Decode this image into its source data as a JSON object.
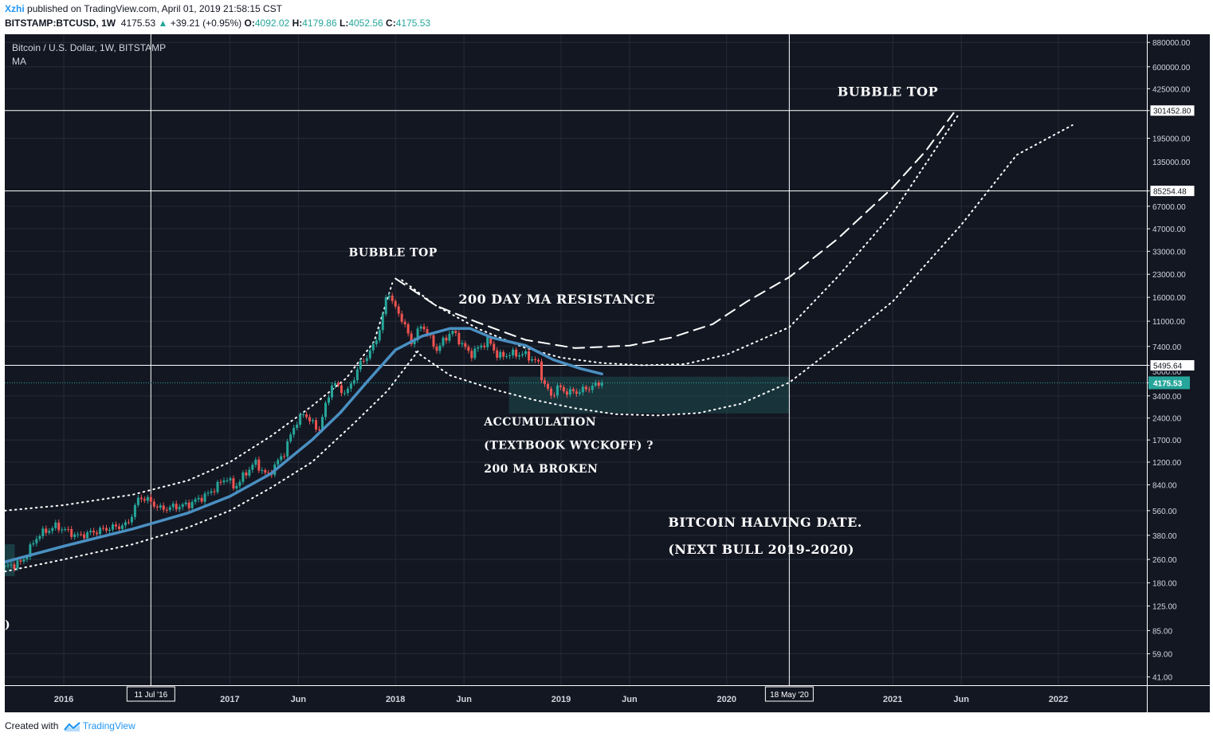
{
  "header": {
    "user": "Xzhi",
    "published": "published on TradingView.com, April 01, 2019 21:58:15 CST",
    "symbol": "BITSTAMP:BTCUSD, 1W",
    "last": "4175.53",
    "change_arrow": "▲",
    "change": "+39.21 (+0.95%)",
    "o_label": "O:",
    "o": "4092.02",
    "h_label": "H:",
    "h": "4179.86",
    "l_label": "L:",
    "l": "4052.56",
    "c_label": "C:",
    "c": "4175.53"
  },
  "footer": {
    "created_with": "Created with",
    "brand": "TradingView",
    "logo_icon": "tradingview-logo-icon"
  },
  "colors": {
    "background": "#131722",
    "grid": "#262b38",
    "up": "#26a69a",
    "down": "#ef5350",
    "ma": "#4a90c2",
    "last_price": "#26a69a",
    "accumulation_box": "#1d4b4f",
    "text": "#ffffff",
    "axis_text": "#d1d4dc"
  },
  "chart_data": {
    "type": "candlestick",
    "scale": "log",
    "legend_title": "Bitcoin / U.S. Dollar, 1W, BITSTAMP",
    "indicator": "MA",
    "price_axis_ticks": [
      880000,
      600000,
      425000,
      301452.8,
      195000,
      85254.48,
      67000,
      47000,
      33000,
      23000,
      16000,
      11000,
      7400,
      5495.64,
      4175.53,
      3400,
      2400,
      1700,
      1200,
      840,
      560,
      380,
      260,
      180,
      125,
      85,
      59,
      41
    ],
    "price_axis_labels": [
      "880000.00",
      "600000.00",
      "425000.00",
      "301452.80",
      "195000.00",
      "85254.48",
      "67000.00",
      "47000.00",
      "33000.00",
      "23000.00",
      "16000.00",
      "11000.00",
      "7400.00",
      "5495.64",
      "4175.53",
      "3400.00",
      "2400.00",
      "1700.00",
      "1200.00",
      "840.00",
      "560.00",
      "380.00",
      "260.00",
      "180.00",
      "125.00",
      "85.00",
      "59.00",
      "41.00"
    ],
    "partially_hidden_axis_labels": [
      "290000.00",
      "135000.00",
      "5000.00"
    ],
    "time_axis": [
      {
        "date": "2016-01-01",
        "label": "2016"
      },
      {
        "date": "2016-07-11",
        "label": "11 Jul '16",
        "boxed": true
      },
      {
        "date": "2017-01-01",
        "label": "2017"
      },
      {
        "date": "2017-06-01",
        "label": "Jun"
      },
      {
        "date": "2018-01-01",
        "label": "2018"
      },
      {
        "date": "2018-06-01",
        "label": "Jun"
      },
      {
        "date": "2019-01-01",
        "label": "2019"
      },
      {
        "date": "2019-06-01",
        "label": "Jun"
      },
      {
        "date": "2020-01-01",
        "label": "2020"
      },
      {
        "date": "2020-05-18",
        "label": "18 May '20",
        "boxed": true
      },
      {
        "date": "2021-01-01",
        "label": "2021"
      },
      {
        "date": "2021-06-01",
        "label": "Jun"
      },
      {
        "date": "2022-01-01",
        "label": "2022"
      }
    ],
    "date_range": [
      "2015-08-24",
      "2022-07-15"
    ],
    "price_range": [
      36,
      1000000
    ],
    "weekly_close_path": [
      {
        "date": "2015-08-24",
        "close": 230
      },
      {
        "date": "2015-10-01",
        "close": 250
      },
      {
        "date": "2015-11-05",
        "close": 380
      },
      {
        "date": "2015-12-15",
        "close": 440
      },
      {
        "date": "2016-02-01",
        "close": 375
      },
      {
        "date": "2016-04-01",
        "close": 420
      },
      {
        "date": "2016-05-20",
        "close": 450
      },
      {
        "date": "2016-06-16",
        "close": 700
      },
      {
        "date": "2016-07-05",
        "close": 660
      },
      {
        "date": "2016-08-01",
        "close": 575
      },
      {
        "date": "2016-10-01",
        "close": 615
      },
      {
        "date": "2016-11-15",
        "close": 730
      },
      {
        "date": "2016-12-25",
        "close": 950
      },
      {
        "date": "2017-01-10",
        "close": 800
      },
      {
        "date": "2017-02-25",
        "close": 1200
      },
      {
        "date": "2017-03-25",
        "close": 960
      },
      {
        "date": "2017-05-01",
        "close": 1400
      },
      {
        "date": "2017-05-25",
        "close": 2200
      },
      {
        "date": "2017-06-15",
        "close": 2600
      },
      {
        "date": "2017-07-15",
        "close": 1950
      },
      {
        "date": "2017-08-15",
        "close": 4200
      },
      {
        "date": "2017-09-15",
        "close": 3500
      },
      {
        "date": "2017-10-15",
        "close": 5600
      },
      {
        "date": "2017-11-10",
        "close": 7000
      },
      {
        "date": "2017-12-01",
        "close": 10500
      },
      {
        "date": "2017-12-15",
        "close": 18500
      },
      {
        "date": "2017-12-28",
        "close": 14000
      },
      {
        "date": "2018-01-15",
        "close": 11500
      },
      {
        "date": "2018-02-05",
        "close": 7800
      },
      {
        "date": "2018-03-01",
        "close": 10500
      },
      {
        "date": "2018-04-01",
        "close": 7000
      },
      {
        "date": "2018-05-05",
        "close": 9500
      },
      {
        "date": "2018-06-15",
        "close": 6500
      },
      {
        "date": "2018-07-25",
        "close": 8200
      },
      {
        "date": "2018-08-15",
        "close": 6300
      },
      {
        "date": "2018-09-15",
        "close": 6600
      },
      {
        "date": "2018-10-15",
        "close": 6500
      },
      {
        "date": "2018-11-14",
        "close": 5600
      },
      {
        "date": "2018-11-21",
        "close": 4300
      },
      {
        "date": "2018-12-10",
        "close": 3400
      },
      {
        "date": "2018-12-25",
        "close": 3900
      },
      {
        "date": "2019-01-15",
        "close": 3600
      },
      {
        "date": "2019-02-10",
        "close": 3650
      },
      {
        "date": "2019-03-01",
        "close": 3850
      },
      {
        "date": "2019-04-01",
        "close": 4175.53
      }
    ],
    "ma_line": [
      {
        "date": "2015-08-24",
        "value": 250
      },
      {
        "date": "2016-01-01",
        "value": 320
      },
      {
        "date": "2016-06-01",
        "value": 420
      },
      {
        "date": "2016-10-01",
        "value": 540
      },
      {
        "date": "2017-01-01",
        "value": 700
      },
      {
        "date": "2017-04-01",
        "value": 1000
      },
      {
        "date": "2017-07-01",
        "value": 1700
      },
      {
        "date": "2017-09-01",
        "value": 2600
      },
      {
        "date": "2017-11-01",
        "value": 4300
      },
      {
        "date": "2018-01-01",
        "value": 7000
      },
      {
        "date": "2018-03-01",
        "value": 8700
      },
      {
        "date": "2018-05-01",
        "value": 9800
      },
      {
        "date": "2018-06-15",
        "value": 9800
      },
      {
        "date": "2018-08-01",
        "value": 8500
      },
      {
        "date": "2018-10-15",
        "value": 7500
      },
      {
        "date": "2018-12-15",
        "value": 6000
      },
      {
        "date": "2019-02-15",
        "value": 5200
      },
      {
        "date": "2019-04-01",
        "value": 4800
      }
    ],
    "horizontal_levels": [
      301452.8,
      85254.48,
      5495.64
    ],
    "last_price": 4175.53,
    "vertical_markers": [
      "2016-07-11",
      "2020-05-18"
    ],
    "accumulation_zone": {
      "from": "2018-09-08",
      "to": "2020-05-18",
      "low": 2580,
      "high": 4600
    },
    "left_zone": {
      "from": "2015-08-24",
      "to": "2015-09-15",
      "low": 200,
      "high": 330
    },
    "curves": [
      {
        "style": "dotted",
        "points": [
          [
            "2015-08-24",
            560
          ],
          [
            "2016-01-01",
            610
          ],
          [
            "2016-06-01",
            720
          ],
          [
            "2016-10-01",
            900
          ],
          [
            "2017-01-01",
            1200
          ],
          [
            "2017-04-01",
            1800
          ],
          [
            "2017-07-01",
            2900
          ],
          [
            "2017-09-15",
            4500
          ],
          [
            "2017-11-15",
            8000
          ],
          [
            "2017-12-25",
            20000
          ]
        ]
      },
      {
        "style": "dotted",
        "points": [
          [
            "2015-08-24",
            215
          ],
          [
            "2016-01-01",
            260
          ],
          [
            "2016-06-01",
            330
          ],
          [
            "2016-10-01",
            430
          ],
          [
            "2017-01-01",
            560
          ],
          [
            "2017-04-01",
            800
          ],
          [
            "2017-07-01",
            1200
          ],
          [
            "2017-10-01",
            2200
          ],
          [
            "2017-12-15",
            3700
          ],
          [
            "2018-02-20",
            6900
          ]
        ]
      },
      {
        "style": "dashed",
        "points": [
          [
            "2018-01-01",
            21500
          ],
          [
            "2018-04-01",
            14000
          ],
          [
            "2018-07-01",
            10800
          ],
          [
            "2018-10-15",
            8200
          ],
          [
            "2019-02-01",
            7200
          ],
          [
            "2019-06-01",
            7500
          ],
          [
            "2019-09-01",
            8500
          ],
          [
            "2019-12-01",
            10500
          ],
          [
            "2020-02-15",
            15000
          ],
          [
            "2020-05-18",
            22000
          ],
          [
            "2020-09-01",
            40000
          ],
          [
            "2021-01-01",
            90000
          ],
          [
            "2021-03-15",
            160000
          ],
          [
            "2021-05-15",
            290000
          ]
        ]
      },
      {
        "style": "dotted",
        "points": [
          [
            "2018-01-15",
            21000
          ],
          [
            "2018-04-01",
            14000
          ],
          [
            "2018-07-01",
            9800
          ],
          [
            "2018-10-15",
            7200
          ],
          [
            "2019-01-01",
            6200
          ],
          [
            "2019-04-01",
            5700
          ],
          [
            "2019-07-01",
            5500
          ],
          [
            "2019-10-01",
            5600
          ],
          [
            "2020-01-01",
            6500
          ],
          [
            "2020-05-18",
            10000
          ],
          [
            "2020-09-01",
            22000
          ],
          [
            "2021-01-01",
            60000
          ],
          [
            "2021-05-25",
            280000
          ]
        ]
      },
      {
        "style": "dotted",
        "points": [
          [
            "2018-02-15",
            6800
          ],
          [
            "2018-05-01",
            4700
          ],
          [
            "2018-08-01",
            3800
          ],
          [
            "2018-11-01",
            3200
          ],
          [
            "2019-02-01",
            2800
          ],
          [
            "2019-05-01",
            2550
          ],
          [
            "2019-08-01",
            2500
          ],
          [
            "2019-11-01",
            2600
          ],
          [
            "2020-02-01",
            3000
          ],
          [
            "2020-05-18",
            4200
          ],
          [
            "2020-09-01",
            7500
          ],
          [
            "2021-01-01",
            15000
          ],
          [
            "2021-06-01",
            50000
          ],
          [
            "2021-10-01",
            150000
          ],
          [
            "2022-02-01",
            240000
          ]
        ]
      }
    ],
    "annotations": [
      {
        "text": "BUBBLE TOP",
        "date": "2020-09-01",
        "price": 380000,
        "size": 16
      },
      {
        "text": "BUBBLE TOP",
        "date": "2017-09-20",
        "price": 30500,
        "size": 14
      },
      {
        "text": "200 DAY MA RESISTANCE",
        "date": "2018-05-20",
        "price": 14500,
        "size": 16
      },
      {
        "text": "ACCUMULATION",
        "date": "2018-07-15",
        "price": 2140,
        "size": 14
      },
      {
        "text": "(TEXTBOOK WYCKOFF) ?",
        "date": "2018-07-15",
        "price": 1480,
        "size": 14
      },
      {
        "text": "200 MA BROKEN",
        "date": "2018-07-15",
        "price": 1020,
        "size": 14
      },
      {
        "text": "BITCOIN HALVING DATE.",
        "date": "2019-08-25",
        "price": 435,
        "size": 16
      },
      {
        "text": "(NEXT BULL 2019-2020)",
        "date": "2019-08-25",
        "price": 285,
        "size": 16
      },
      {
        "text": ")",
        "date": "2015-08-24",
        "price": 88,
        "size": 14
      }
    ]
  }
}
